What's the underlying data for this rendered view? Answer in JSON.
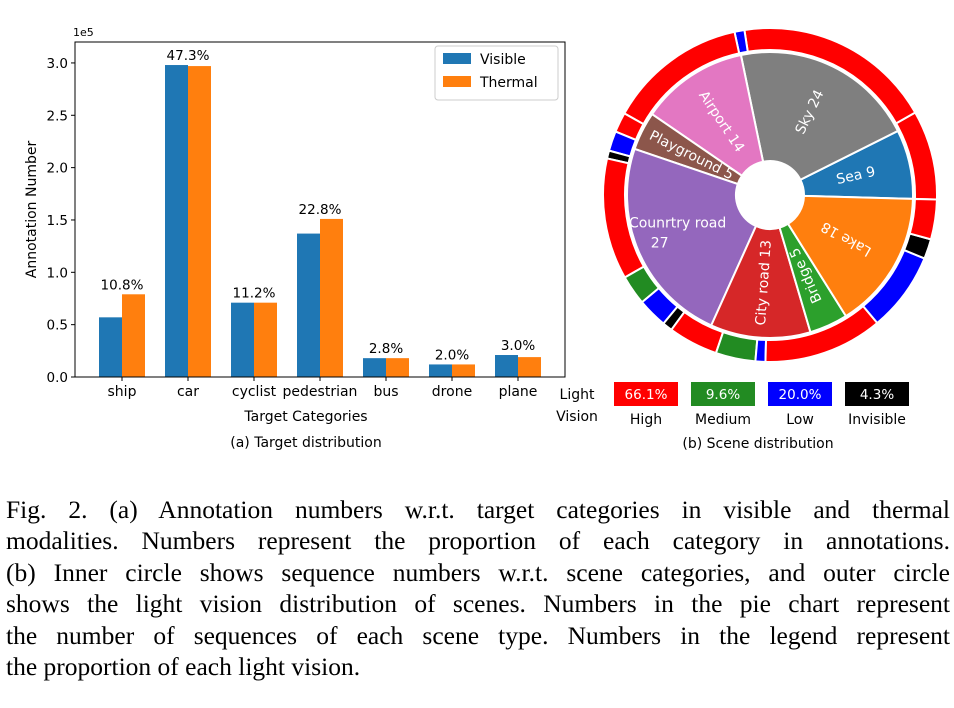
{
  "chart_data": [
    {
      "type": "bar",
      "panel_label": "(a) Target distribution",
      "xlabel": "Target Categories",
      "ylabel": "Annotation Number",
      "y_offset_text": "1e5",
      "ylim": [
        0,
        3.2
      ],
      "yticks": [
        "0.0",
        "0.5",
        "1.0",
        "1.5",
        "2.0",
        "2.5",
        "3.0"
      ],
      "grid": false,
      "legend_position": "top-right",
      "categories": [
        "ship",
        "car",
        "cyclist",
        "pedestrian",
        "bus",
        "drone",
        "plane"
      ],
      "series": [
        {
          "name": "Visible",
          "color": "#1f77b4",
          "values": [
            0.57,
            2.98,
            0.71,
            1.37,
            0.18,
            0.12,
            0.21
          ]
        },
        {
          "name": "Thermal",
          "color": "#ff7f0e",
          "values": [
            0.79,
            2.97,
            0.71,
            1.51,
            0.18,
            0.12,
            0.19
          ]
        }
      ],
      "data_labels": [
        "10.8%",
        "47.3%",
        "11.2%",
        "22.8%",
        "2.8%",
        "2.0%",
        "3.0%"
      ]
    },
    {
      "type": "pie",
      "panel_label": "(b) Scene distribution",
      "inner": [
        {
          "label": "Sea",
          "value": 9,
          "color": "#1f77b4"
        },
        {
          "label": "Sky",
          "value": 24,
          "color": "#7f7f7f"
        },
        {
          "label": "Airport",
          "value": 14,
          "color": "#e377c2"
        },
        {
          "label": "Playground",
          "value": 5,
          "color": "#8c564b"
        },
        {
          "label": "Counrtry road",
          "value": 27,
          "color": "#9467bd"
        },
        {
          "label": "City road",
          "value": 13,
          "color": "#d62728"
        },
        {
          "label": "Bridge",
          "value": 5,
          "color": "#2ca02c"
        },
        {
          "label": "Lake",
          "value": 18,
          "color": "#ff7f0e"
        }
      ],
      "outer": [
        {
          "level": "High",
          "value": 9
        },
        {
          "level": "High",
          "value": 20
        },
        {
          "level": "Low",
          "value": 1
        },
        {
          "level": "High",
          "value": 14
        },
        {
          "level": "High",
          "value": 2
        },
        {
          "level": "Low",
          "value": 2
        },
        {
          "level": "Invisible",
          "value": 0.8
        },
        {
          "level": "High",
          "value": 12.2
        },
        {
          "level": "Medium",
          "value": 3
        },
        {
          "level": "Low",
          "value": 3
        },
        {
          "level": "Invisible",
          "value": 1
        },
        {
          "level": "High",
          "value": 5
        },
        {
          "level": "Medium",
          "value": 4
        },
        {
          "level": "Low",
          "value": 1
        },
        {
          "level": "High",
          "value": 12
        },
        {
          "level": "Low",
          "value": 8
        },
        {
          "level": "Invisible",
          "value": 2
        },
        {
          "level": "High",
          "value": 4
        }
      ],
      "legend": {
        "title_lines": [
          "Light",
          "Vision"
        ],
        "items": [
          {
            "level": "High",
            "pct": "66.1%",
            "color": "#ff0000"
          },
          {
            "level": "Medium",
            "pct": "9.6%",
            "color": "#228b22"
          },
          {
            "level": "Low",
            "pct": "20.0%",
            "color": "#0000ff"
          },
          {
            "level": "Invisible",
            "pct": "4.3%",
            "color": "#000000"
          }
        ]
      }
    }
  ],
  "caption": {
    "lines": [
      "Fig. 2.     (a) Annotation numbers w.r.t. target categories in visible and thermal",
      "modalities. Numbers represent the proportion of each category in annotations.",
      "(b) Inner circle shows sequence numbers w.r.t. scene categories, and outer circle",
      "shows the light vision distribution of scenes. Numbers in the pie chart represent",
      "the number of sequences of each scene type. Numbers in the legend represent",
      "the proportion of each light vision."
    ]
  }
}
